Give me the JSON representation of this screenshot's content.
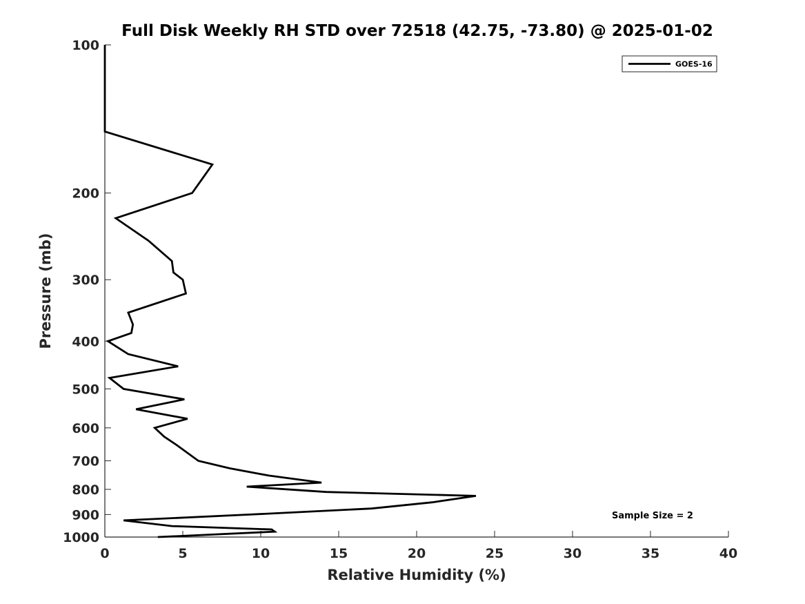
{
  "chart_data": {
    "type": "line",
    "title": "Full Disk Weekly RH STD over 72518 (42.75, -73.80) @ 2025-01-02",
    "xlabel": "Relative Humidity (%)",
    "ylabel": "Pressure (mb)",
    "xlim": [
      0,
      40
    ],
    "ylim": [
      100,
      1000
    ],
    "y_scale": "log",
    "y_reversed": true,
    "grid": false,
    "x_ticks": [
      0,
      5,
      10,
      15,
      20,
      25,
      30,
      35,
      40
    ],
    "x_tick_labels": [
      "0",
      "5",
      "10",
      "15",
      "20",
      "25",
      "30",
      "35",
      "40"
    ],
    "y_ticks": [
      100,
      200,
      300,
      400,
      500,
      600,
      700,
      800,
      900,
      1000
    ],
    "y_tick_labels": [
      "100",
      "200",
      "300",
      "400",
      "500",
      "600",
      "700",
      "800",
      "900",
      "1000"
    ],
    "legend_position": "top-right",
    "series": [
      {
        "name": "GOES-16",
        "color": "#000000",
        "points": [
          [
            0.0,
            100
          ],
          [
            0.0,
            125
          ],
          [
            0.0,
            150
          ],
          [
            6.9,
            175
          ],
          [
            5.6,
            200
          ],
          [
            0.7,
            225
          ],
          [
            2.8,
            250
          ],
          [
            4.3,
            275
          ],
          [
            4.4,
            290
          ],
          [
            5.0,
            300
          ],
          [
            5.2,
            320
          ],
          [
            1.5,
            350
          ],
          [
            1.8,
            370
          ],
          [
            1.7,
            385
          ],
          [
            0.2,
            400
          ],
          [
            1.5,
            425
          ],
          [
            4.7,
            450
          ],
          [
            0.3,
            475
          ],
          [
            1.2,
            500
          ],
          [
            5.1,
            525
          ],
          [
            2.0,
            550
          ],
          [
            5.3,
            575
          ],
          [
            3.2,
            600
          ],
          [
            3.8,
            625
          ],
          [
            4.6,
            650
          ],
          [
            6.0,
            700
          ],
          [
            8.0,
            725
          ],
          [
            10.5,
            750
          ],
          [
            13.9,
            775
          ],
          [
            9.1,
            790
          ],
          [
            14.2,
            810
          ],
          [
            23.8,
            825
          ],
          [
            21.0,
            850
          ],
          [
            17.1,
            875
          ],
          [
            9.3,
            900
          ],
          [
            1.2,
            925
          ],
          [
            4.3,
            950
          ],
          [
            10.7,
            965
          ],
          [
            10.9,
            975
          ],
          [
            3.4,
            1000
          ]
        ]
      }
    ],
    "annotation": "Sample Size = 2"
  }
}
